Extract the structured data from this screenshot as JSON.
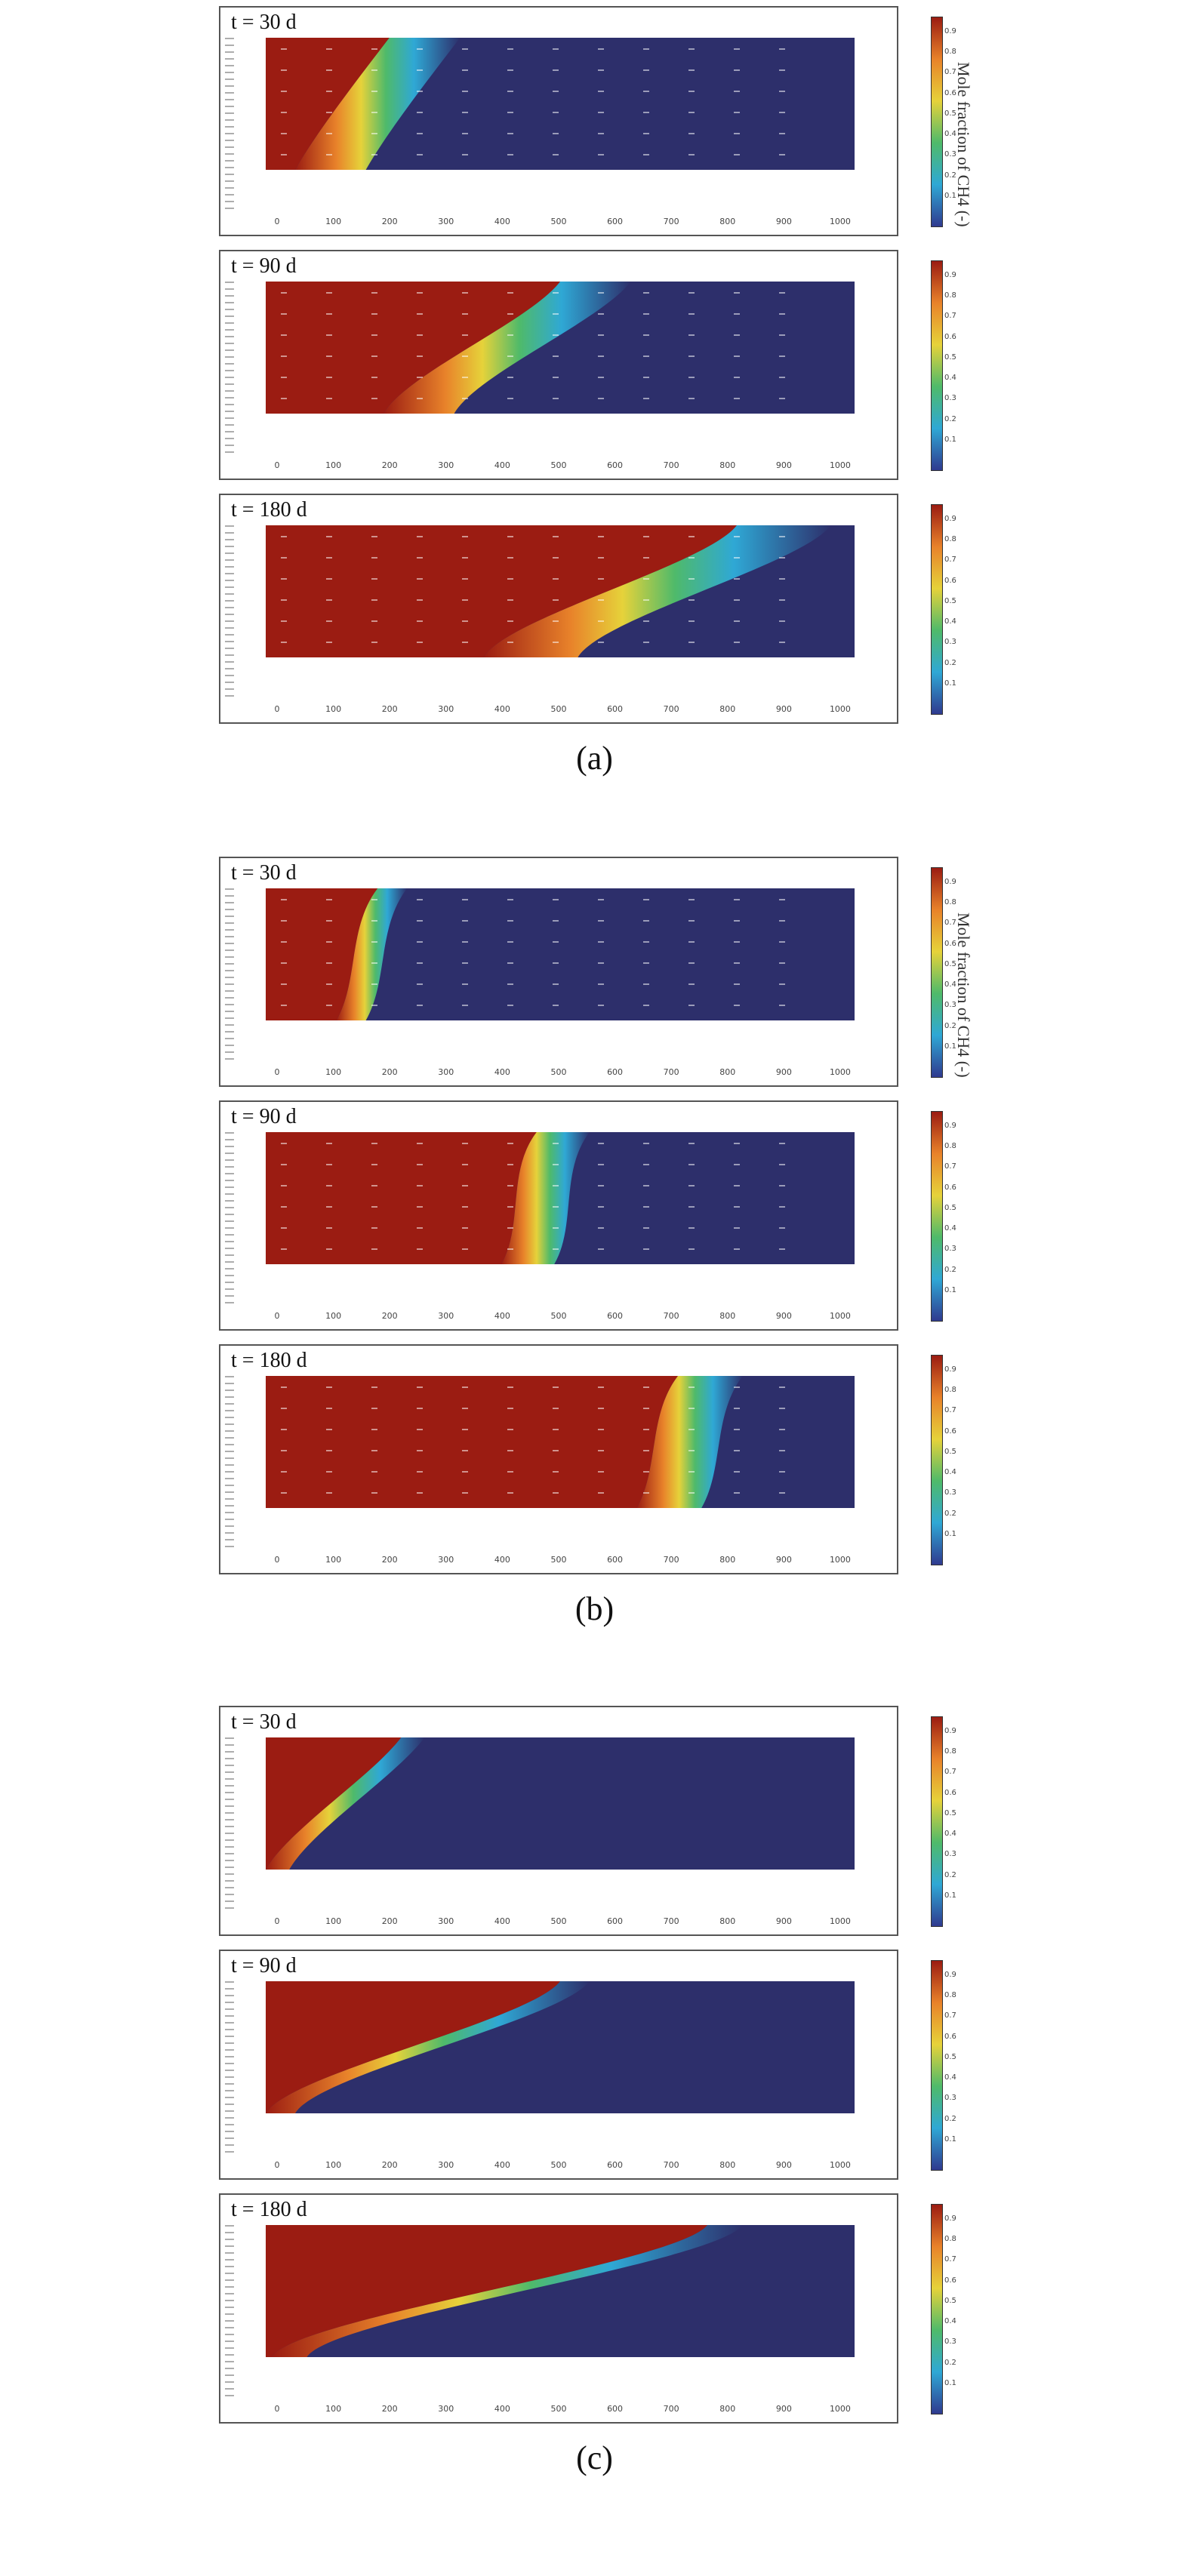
{
  "figure": {
    "colorbar_title": "Mole fraction of CH4 (-)",
    "colors": {
      "high": "#9b1c12",
      "mid_orange": "#e8822a",
      "mid_yellow": "#e6d23a",
      "mid_green": "#4fba6a",
      "mid_cyan": "#2fa8d5",
      "low_blue": "#2f3a8f",
      "background": "#2d2f6b"
    },
    "colorbar_ticks": [
      "0.9",
      "0.8",
      "0.7",
      "0.6",
      "0.5",
      "0.4",
      "0.3",
      "0.2",
      "0.1"
    ],
    "x_ticks": [
      "0",
      "100",
      "200",
      "300",
      "400",
      "500",
      "600",
      "700",
      "800",
      "900",
      "1000"
    ],
    "panels": [
      {
        "caption": "(a)",
        "subplots": [
          {
            "time": "t = 30 d",
            "front_top": 0.21,
            "front_bottom": 0.05,
            "width": 0.12
          },
          {
            "time": "t = 90 d",
            "front_top": 0.5,
            "front_bottom": 0.2,
            "width": 0.12
          },
          {
            "time": "t = 180 d",
            "front_top": 0.8,
            "front_bottom": 0.37,
            "width": 0.16
          }
        ]
      },
      {
        "caption": "(b)",
        "subplots": [
          {
            "time": "t = 30 d",
            "front_top": 0.19,
            "front_bottom": 0.12,
            "width": 0.05
          },
          {
            "time": "t = 90 d",
            "front_top": 0.46,
            "front_bottom": 0.4,
            "width": 0.09
          },
          {
            "time": "t = 180 d",
            "front_top": 0.7,
            "front_bottom": 0.63,
            "width": 0.11
          }
        ]
      },
      {
        "caption": "(c)",
        "subplots": [
          {
            "time": "t = 30 d",
            "front_top": 0.23,
            "front_bottom": 0.0,
            "width": 0.04
          },
          {
            "time": "t = 90 d",
            "front_top": 0.5,
            "front_bottom": 0.0,
            "width": 0.05
          },
          {
            "time": "t = 180 d",
            "front_top": 0.75,
            "front_bottom": 0.01,
            "width": 0.06
          }
        ]
      }
    ]
  }
}
